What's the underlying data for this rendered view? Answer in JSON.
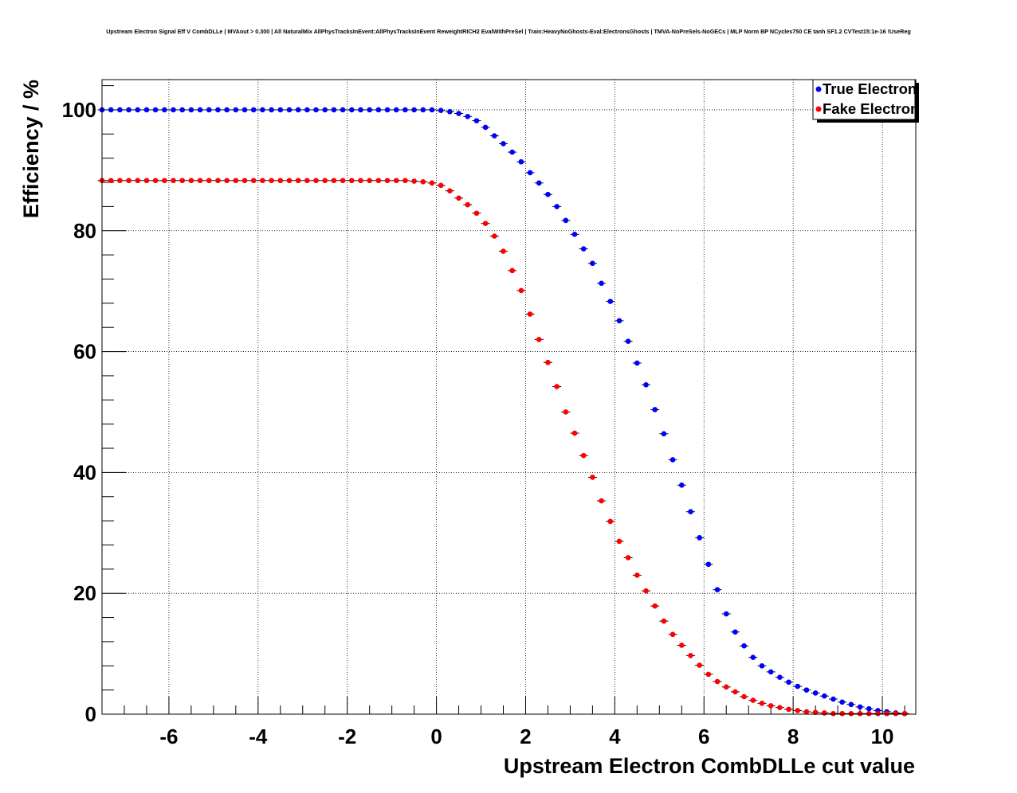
{
  "chart_data": {
    "type": "scatter",
    "title": "Upstream Electron Signal Eff V CombDLLe | MVAout > 0.300 | All NaturalMix AllPhysTracksInEvent:AllPhysTracksInEvent ReweightRICH2 EvalWithPreSel | Train:HeavyNoGhosts-Eval:ElectronsGhosts | TMVA-NoPreSels-NoGECs | MLP Norm BP NCycles750 CE tanh SF1.2 CVTest15:1e-16 !UseReg",
    "xlabel": "Upstream Electron CombDLLe cut value",
    "ylabel": "Efficiency / %",
    "xlim": [
      -7.5,
      10.75
    ],
    "ylim": [
      0,
      105
    ],
    "xticks": [
      -6,
      -4,
      -2,
      0,
      2,
      4,
      6,
      8,
      10
    ],
    "xtick_labels": [
      "-6",
      "-4",
      "-2",
      "0",
      "2",
      "4",
      "6",
      "8",
      "10"
    ],
    "yticks": [
      0,
      20,
      40,
      60,
      80,
      100
    ],
    "ytick_labels": [
      "0",
      "20",
      "40",
      "60",
      "80",
      "100"
    ],
    "grid": true,
    "legend_position": "top-right",
    "x": {
      "start": -7.5,
      "step": 0.2,
      "count": 91
    },
    "series": [
      {
        "name": "True Electron",
        "color": "#0000ff",
        "values": [
          100,
          100,
          100,
          100,
          100,
          100,
          100,
          100,
          100,
          100,
          100,
          100,
          100,
          100,
          100,
          100,
          100,
          100,
          100,
          100,
          100,
          100,
          100,
          100,
          100,
          100,
          100,
          100,
          100,
          100,
          100,
          100,
          100,
          100,
          100,
          100,
          100,
          100,
          99.9,
          99.7,
          99.4,
          98.9,
          98.2,
          97.1,
          95.7,
          94.4,
          93.0,
          91.4,
          89.6,
          87.9,
          86.0,
          84.0,
          81.7,
          79.4,
          77.0,
          74.6,
          71.3,
          68.3,
          65.1,
          61.7,
          58.1,
          54.5,
          50.4,
          46.4,
          42.1,
          37.9,
          33.5,
          29.2,
          24.8,
          20.6,
          16.6,
          13.6,
          11.3,
          9.4,
          8.0,
          7.0,
          6.1,
          5.3,
          4.6,
          4.0,
          3.5,
          3.0,
          2.5,
          2.0,
          1.6,
          1.2,
          0.9,
          0.6,
          0.4,
          0.2,
          0.1
        ]
      },
      {
        "name": "Fake Electron",
        "color": "#ff0000",
        "values": [
          88.3,
          88.3,
          88.3,
          88.3,
          88.3,
          88.3,
          88.3,
          88.3,
          88.3,
          88.3,
          88.3,
          88.3,
          88.3,
          88.3,
          88.3,
          88.3,
          88.3,
          88.3,
          88.3,
          88.3,
          88.3,
          88.3,
          88.3,
          88.3,
          88.3,
          88.3,
          88.3,
          88.3,
          88.3,
          88.3,
          88.3,
          88.3,
          88.3,
          88.3,
          88.3,
          88.2,
          88.1,
          87.9,
          87.5,
          86.6,
          85.4,
          84.3,
          82.9,
          81.2,
          79.1,
          76.6,
          73.4,
          70.1,
          66.2,
          62.0,
          58.2,
          54.2,
          50.0,
          46.5,
          42.8,
          39.2,
          35.3,
          31.9,
          28.6,
          25.9,
          23.0,
          20.4,
          17.9,
          15.4,
          13.2,
          11.4,
          9.7,
          8.1,
          6.6,
          5.4,
          4.5,
          3.7,
          2.9,
          2.3,
          1.8,
          1.4,
          1.1,
          0.8,
          0.6,
          0.4,
          0.3,
          0.2,
          0.1,
          0.1,
          0.1,
          0.1,
          0.1,
          0.1,
          0.1,
          0.1,
          0.1
        ]
      }
    ]
  }
}
